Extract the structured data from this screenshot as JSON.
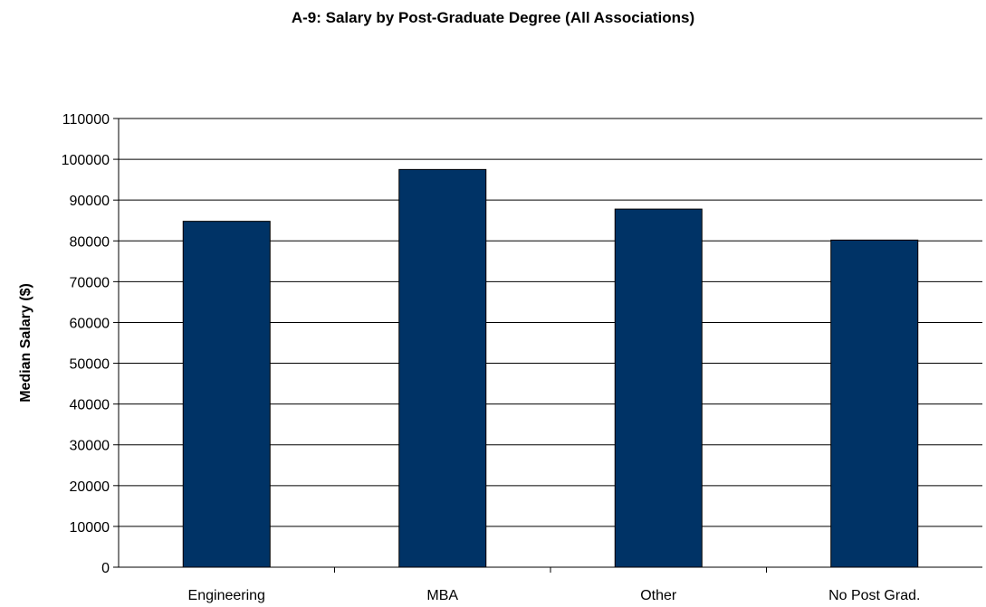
{
  "chart_data": {
    "type": "bar",
    "title": "A-9: Salary by Post-Graduate Degree (All Associations)",
    "xlabel": "",
    "ylabel": "Median Salary ($)",
    "categories": [
      "Engineering",
      "MBA",
      "Other",
      "No Post Grad."
    ],
    "values": [
      84800,
      97500,
      87800,
      80200
    ],
    "ylim": [
      0,
      110000
    ],
    "ytick_step": 10000,
    "grid": true,
    "legend": "none",
    "bar_color": "#003366"
  }
}
